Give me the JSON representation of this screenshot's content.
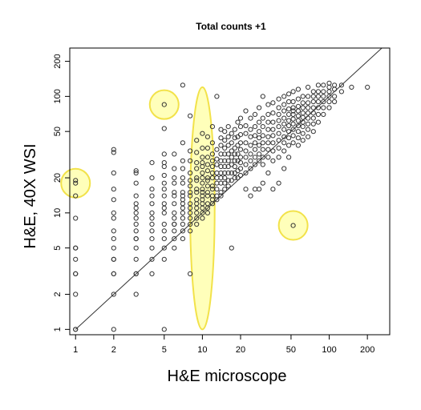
{
  "chart_data": {
    "type": "scatter",
    "title": "Total counts +1",
    "xlabel": "H&E microscope",
    "ylabel": "H&E, 40X WSI",
    "xscale": "log",
    "yscale": "log",
    "xlim": [
      0.9,
      300
    ],
    "ylim": [
      0.9,
      260
    ],
    "xticks": [
      1,
      2,
      5,
      10,
      20,
      50,
      100,
      200
    ],
    "yticks": [
      1,
      2,
      5,
      10,
      20,
      50,
      100,
      200
    ],
    "grid": false,
    "legend": "none",
    "reference_line": "identity y = x",
    "point_color": "#333333",
    "highlight_color": "#ffff66",
    "highlights": [
      {
        "shape": "circle",
        "x": 1,
        "y": 18
      },
      {
        "shape": "circle",
        "x": 5,
        "y": 85
      },
      {
        "shape": "circle",
        "x": 52,
        "y": 7.8
      },
      {
        "shape": "ellipse",
        "x": 10,
        "y": 10,
        "x_range": [
          8,
          12.5
        ],
        "y_range": [
          1,
          120
        ]
      }
    ],
    "series": [
      {
        "x": [
          1,
          1,
          1,
          1,
          1,
          1,
          1,
          1,
          1,
          1,
          1,
          1,
          2,
          2,
          2,
          2,
          2,
          2,
          2,
          2,
          2,
          2,
          2,
          2,
          2,
          2,
          2,
          2,
          3,
          3,
          3,
          3,
          3,
          3,
          3,
          3,
          3,
          3,
          3,
          3,
          3,
          3,
          3,
          3,
          3,
          4,
          4,
          4,
          4,
          4,
          4,
          4,
          4,
          4,
          4,
          4,
          4,
          4,
          5,
          5,
          5,
          5,
          5,
          5,
          5,
          5,
          5,
          5,
          5,
          5,
          5,
          5,
          5,
          5,
          5,
          5,
          6,
          6,
          6,
          6,
          6,
          6,
          6,
          6,
          6,
          6,
          6,
          6,
          6,
          6,
          7,
          7,
          7,
          7,
          7,
          7,
          7,
          7,
          7,
          7,
          7,
          7,
          7,
          7,
          7,
          7,
          8,
          8,
          8,
          8,
          8,
          8,
          8,
          8,
          8,
          8,
          8,
          8,
          8,
          8,
          8,
          9,
          9,
          9,
          9,
          9,
          9,
          9,
          9,
          9,
          9,
          9,
          9,
          9,
          9,
          10,
          10,
          10,
          10,
          10,
          10,
          10,
          10,
          10,
          10,
          10,
          10,
          10,
          10,
          10,
          10,
          11,
          11,
          11,
          11,
          11,
          11,
          11,
          11,
          11,
          11,
          11,
          11,
          11,
          12,
          12,
          12,
          12,
          12,
          12,
          12,
          12,
          12,
          12,
          12,
          12,
          13,
          13,
          13,
          13,
          13,
          13,
          13,
          13,
          13,
          13,
          14,
          14,
          14,
          14,
          14,
          14,
          14,
          14,
          14,
          14,
          14,
          15,
          15,
          15,
          15,
          15,
          15,
          15,
          15,
          15,
          15,
          16,
          16,
          16,
          16,
          16,
          16,
          16,
          16,
          16,
          17,
          17,
          17,
          17,
          17,
          17,
          17,
          17,
          18,
          18,
          18,
          18,
          18,
          18,
          18,
          18,
          19,
          19,
          19,
          19,
          19,
          19,
          19,
          20,
          20,
          20,
          20,
          20,
          20,
          20,
          20,
          20,
          22,
          22,
          22,
          22,
          22,
          22,
          22,
          22,
          22,
          24,
          24,
          24,
          24,
          24,
          24,
          24,
          24,
          26,
          26,
          26,
          26,
          26,
          26,
          26,
          26,
          28,
          28,
          28,
          28,
          28,
          28,
          28,
          28,
          30,
          30,
          30,
          30,
          30,
          30,
          30,
          30,
          30,
          33,
          33,
          33,
          33,
          33,
          33,
          33,
          33,
          33,
          36,
          36,
          36,
          36,
          36,
          36,
          36,
          36,
          36,
          40,
          40,
          40,
          40,
          40,
          40,
          40,
          40,
          40,
          40,
          44,
          44,
          44,
          44,
          44,
          44,
          44,
          44,
          44,
          44,
          48,
          48,
          48,
          48,
          48,
          48,
          48,
          48,
          48,
          48,
          52,
          52,
          52,
          52,
          52,
          52,
          52,
          52,
          52,
          52,
          52,
          57,
          57,
          57,
          57,
          57,
          57,
          57,
          57,
          57,
          57,
          62,
          62,
          62,
          62,
          62,
          62,
          62,
          62,
          62,
          68,
          68,
          68,
          68,
          68,
          68,
          68,
          68,
          68,
          75,
          75,
          75,
          75,
          75,
          75,
          75,
          75,
          82,
          82,
          82,
          82,
          82,
          82,
          82,
          90,
          90,
          90,
          90,
          90,
          90,
          100,
          100,
          100,
          100,
          100,
          100,
          110,
          110,
          110,
          110,
          125,
          125,
          150,
          200
        ],
        "y": [
          1,
          1,
          2,
          3,
          3,
          4,
          5,
          5,
          9,
          14,
          18,
          19,
          1,
          2,
          3,
          3,
          4,
          4,
          5,
          6,
          7,
          9,
          10,
          13,
          16,
          22,
          33,
          35,
          2,
          3,
          3,
          4,
          5,
          6,
          6,
          7,
          8,
          9,
          10,
          11,
          12,
          14,
          18,
          22,
          23,
          3,
          4,
          5,
          6,
          7,
          8,
          9,
          10,
          12,
          14,
          16,
          20,
          27,
          1,
          4,
          5,
          6,
          7,
          8,
          10,
          11,
          12,
          14,
          16,
          18,
          21,
          25,
          27,
          32,
          53,
          85,
          5,
          6,
          7,
          8,
          8,
          9,
          10,
          12,
          14,
          15,
          18,
          20,
          24,
          32,
          6,
          7,
          8,
          9,
          10,
          11,
          12,
          13,
          14,
          15,
          18,
          20,
          24,
          28,
          40,
          125,
          3,
          7,
          8,
          9,
          10,
          11,
          12,
          14,
          15,
          17,
          19,
          22,
          28,
          34,
          68,
          8,
          9,
          10,
          11,
          12,
          13,
          15,
          16,
          19,
          20,
          24,
          27,
          33,
          42,
          9,
          10,
          11,
          12,
          13,
          14,
          15,
          16,
          18,
          20,
          22,
          25,
          27,
          30,
          36,
          48,
          10,
          11,
          12,
          14,
          15,
          17,
          19,
          20,
          23,
          26,
          30,
          36,
          45,
          12,
          13,
          14,
          16,
          17,
          20,
          22,
          25,
          28,
          32,
          40,
          55,
          13,
          14,
          16,
          18,
          20,
          22,
          26,
          29,
          35,
          100,
          14,
          15,
          18,
          20,
          22,
          25,
          28,
          32,
          38,
          44,
          52,
          16,
          18,
          20,
          22,
          25,
          28,
          32,
          36,
          42,
          50,
          17,
          19,
          22,
          25,
          28,
          32,
          38,
          45,
          55,
          5,
          19,
          22,
          26,
          30,
          34,
          40,
          48,
          20,
          22,
          25,
          28,
          32,
          36,
          44,
          52,
          20,
          23,
          28,
          32,
          38,
          45,
          60,
          21,
          24,
          27,
          30,
          35,
          40,
          47,
          55,
          65,
          16,
          22,
          26,
          30,
          34,
          40,
          48,
          56,
          75,
          14,
          24,
          28,
          32,
          38,
          45,
          52,
          65,
          16,
          26,
          30,
          35,
          40,
          46,
          55,
          70,
          16,
          28,
          32,
          38,
          44,
          50,
          60,
          80,
          18,
          26,
          30,
          35,
          40,
          46,
          55,
          65,
          100,
          22,
          30,
          35,
          40,
          45,
          52,
          60,
          70,
          85,
          16,
          28,
          34,
          40,
          46,
          52,
          60,
          72,
          88,
          18,
          30,
          36,
          42,
          48,
          55,
          62,
          70,
          80,
          95,
          24,
          34,
          40,
          45,
          52,
          58,
          65,
          75,
          85,
          100,
          30,
          38,
          44,
          50,
          56,
          62,
          70,
          78,
          90,
          105,
          7.8,
          40,
          46,
          52,
          58,
          64,
          70,
          75,
          80,
          90,
          110,
          38,
          44,
          50,
          56,
          62,
          68,
          75,
          82,
          95,
          115,
          42,
          48,
          55,
          60,
          66,
          72,
          80,
          88,
          100,
          45,
          52,
          58,
          65,
          72,
          80,
          88,
          100,
          120,
          50,
          58,
          65,
          72,
          80,
          90,
          100,
          110,
          60,
          70,
          80,
          90,
          100,
          110,
          125,
          70,
          80,
          90,
          100,
          110,
          125,
          80,
          90,
          100,
          110,
          120,
          130,
          90,
          100,
          115,
          125,
          110,
          125,
          120,
          120
        ]
      }
    ]
  }
}
